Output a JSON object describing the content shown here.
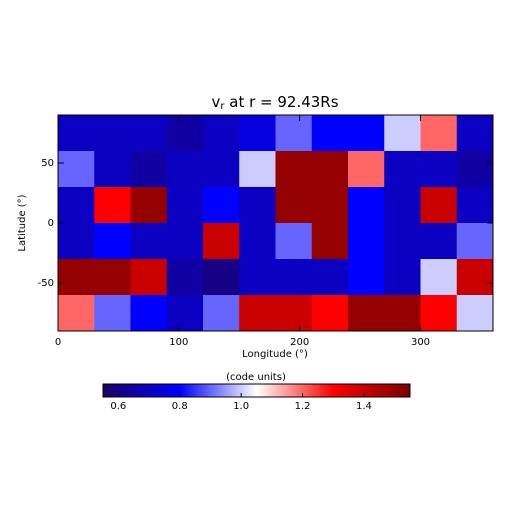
{
  "chart_data": {
    "type": "heatmap",
    "title_symbol": "v",
    "title_subscript": "r",
    "title": "at r = 92.43Rs",
    "xlabel": "Longitude (°)",
    "ylabel": "Latitude (°)",
    "x": [
      15,
      45,
      75,
      105,
      135,
      165,
      195,
      225,
      255,
      285,
      315,
      345
    ],
    "y": [
      75,
      45,
      15,
      -15,
      -45,
      -75
    ],
    "z": [
      [
        0.7,
        0.7,
        0.7,
        0.65,
        0.7,
        0.75,
        0.9,
        0.8,
        0.8,
        1.0,
        1.2,
        0.7
      ],
      [
        0.9,
        0.7,
        0.65,
        0.7,
        0.7,
        1.0,
        1.5,
        1.5,
        1.2,
        0.7,
        0.7,
        0.65
      ],
      [
        0.7,
        1.3,
        1.5,
        0.7,
        0.8,
        0.7,
        1.5,
        1.5,
        0.8,
        0.7,
        1.4,
        0.7
      ],
      [
        0.7,
        0.8,
        0.7,
        0.7,
        1.4,
        0.7,
        0.9,
        1.5,
        0.8,
        0.7,
        0.7,
        0.9
      ],
      [
        1.5,
        1.5,
        1.4,
        0.65,
        0.6,
        0.7,
        0.7,
        0.7,
        0.8,
        0.7,
        1.0,
        1.4
      ],
      [
        1.2,
        0.9,
        0.8,
        0.7,
        0.9,
        1.4,
        1.4,
        1.3,
        1.5,
        1.5,
        1.3,
        1.0
      ]
    ],
    "xlim": [
      0,
      360
    ],
    "xticks": [
      0,
      100,
      200,
      300
    ],
    "ylim": [
      -90,
      90
    ],
    "yticks": [
      -50,
      0,
      50
    ],
    "colorbar_label": "(code units)",
    "clim": [
      0.55,
      1.55
    ],
    "cticks": [
      0.6,
      0.8,
      {
        "value": 1,
        "label": "1.0"
      },
      1.2,
      1.4
    ],
    "colormap": [
      "#1b0066",
      "#0000ff",
      "#ffffff",
      "#ff0000",
      "#7a0000"
    ]
  }
}
